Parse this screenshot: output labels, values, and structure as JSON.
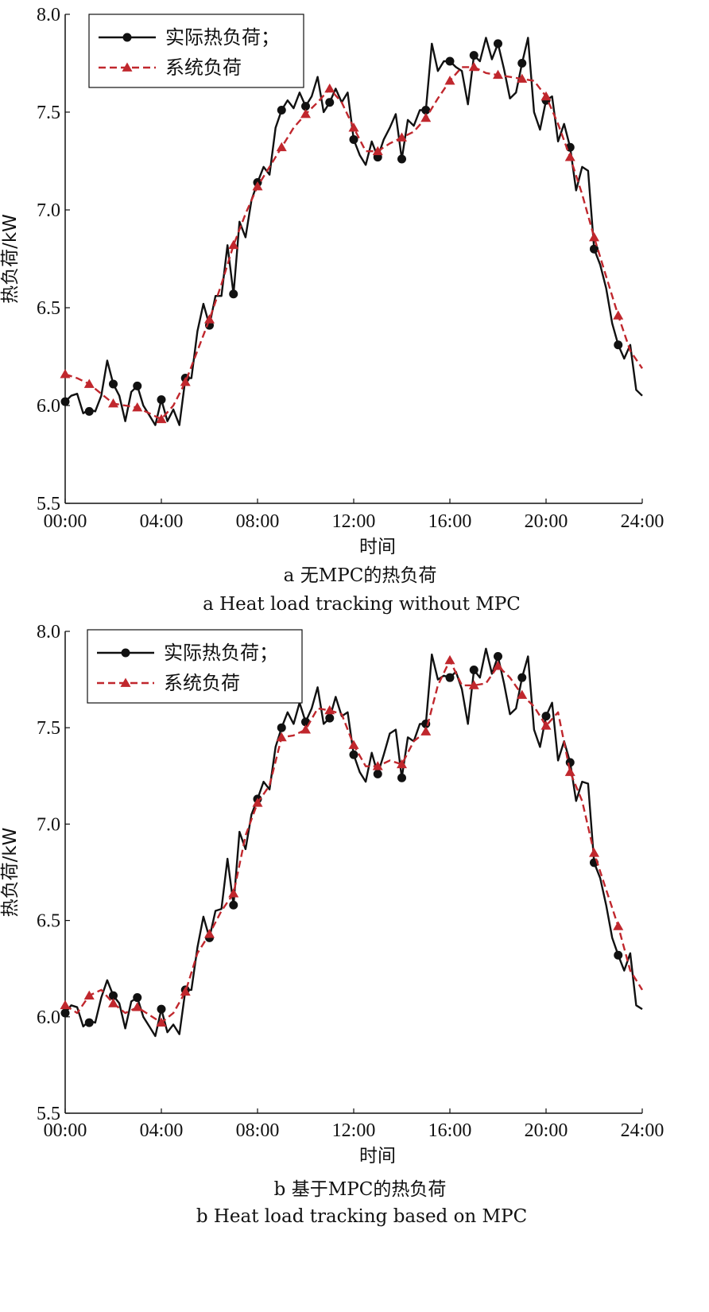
{
  "chart_data": [
    {
      "type": "line",
      "caption_cn": "a  无MPC的热负荷",
      "caption_en": "a  Heat load tracking without MPC",
      "xlabel": "时间",
      "ylabel": "热负荷/kW",
      "xlim": [
        0,
        24
      ],
      "ylim": [
        5.5,
        8.0
      ],
      "xticks": [
        "00:00",
        "04:00",
        "08:00",
        "12:00",
        "16:00",
        "20:00",
        "24:00"
      ],
      "yticks": [
        "5.5",
        "6.0",
        "6.5",
        "7.0",
        "7.5",
        "8.0"
      ],
      "legend_position": "top-left",
      "series": [
        {
          "name": "实际热负荷；",
          "color": "#111111",
          "style": "solid-circle",
          "x": [
            0.0,
            0.25,
            0.5,
            0.75,
            1.0,
            1.25,
            1.5,
            1.75,
            2.0,
            2.25,
            2.5,
            2.75,
            3.0,
            3.25,
            3.5,
            3.75,
            4.0,
            4.25,
            4.5,
            4.75,
            5.0,
            5.25,
            5.5,
            5.75,
            6.0,
            6.25,
            6.5,
            6.75,
            7.0,
            7.25,
            7.5,
            7.75,
            8.0,
            8.25,
            8.5,
            8.75,
            9.0,
            9.25,
            9.5,
            9.75,
            10.0,
            10.25,
            10.5,
            10.75,
            11.0,
            11.25,
            11.5,
            11.75,
            12.0,
            12.25,
            12.5,
            12.75,
            13.0,
            13.25,
            13.5,
            13.75,
            14.0,
            14.25,
            14.5,
            14.75,
            15.0,
            15.25,
            15.5,
            15.75,
            16.0,
            16.25,
            16.5,
            16.75,
            17.0,
            17.25,
            17.5,
            17.75,
            18.0,
            18.25,
            18.5,
            18.75,
            19.0,
            19.25,
            19.5,
            19.75,
            20.0,
            20.25,
            20.5,
            20.75,
            21.0,
            21.25,
            21.5,
            21.75,
            22.0,
            22.25,
            22.5,
            22.75,
            23.0,
            23.25,
            23.5,
            23.75,
            24.0
          ],
          "y": [
            6.02,
            6.05,
            6.06,
            5.96,
            5.98,
            5.97,
            6.05,
            6.23,
            6.11,
            6.05,
            5.92,
            6.07,
            6.1,
            6.0,
            5.95,
            5.9,
            6.03,
            5.92,
            5.98,
            5.9,
            6.14,
            6.14,
            6.38,
            6.52,
            6.41,
            6.56,
            6.56,
            6.82,
            6.57,
            6.94,
            6.86,
            7.05,
            7.14,
            7.22,
            7.18,
            7.42,
            7.51,
            7.56,
            7.52,
            7.6,
            7.53,
            7.58,
            7.68,
            7.5,
            7.55,
            7.62,
            7.55,
            7.6,
            7.36,
            7.28,
            7.23,
            7.35,
            7.27,
            7.36,
            7.42,
            7.49,
            7.26,
            7.46,
            7.43,
            7.51,
            7.51,
            7.85,
            7.71,
            7.76,
            7.76,
            7.73,
            7.71,
            7.54,
            7.79,
            7.76,
            7.88,
            7.77,
            7.85,
            7.72,
            7.57,
            7.6,
            7.75,
            7.88,
            7.5,
            7.41,
            7.56,
            7.58,
            7.35,
            7.44,
            7.32,
            7.1,
            7.22,
            7.2,
            6.8,
            6.72,
            6.6,
            6.42,
            6.31,
            6.24,
            6.31,
            6.08,
            6.05
          ],
          "markers_x": [
            0.0,
            1.0,
            2.0,
            3.0,
            4.0,
            5.0,
            6.0,
            7.0,
            8.0,
            9.0,
            10.0,
            11.0,
            12.0,
            13.0,
            14.0,
            15.0,
            16.0,
            17.0,
            18.0,
            19.0,
            20.0,
            21.0,
            22.0,
            23.0
          ],
          "markers_y": [
            6.02,
            5.97,
            6.11,
            6.1,
            6.03,
            6.14,
            6.41,
            6.57,
            7.14,
            7.51,
            7.53,
            7.55,
            7.36,
            7.27,
            7.26,
            7.51,
            7.76,
            7.79,
            7.85,
            7.75,
            7.56,
            7.32,
            6.8,
            6.31
          ]
        },
        {
          "name": "系统负荷",
          "color": "#c0272d",
          "style": "dashed-triangle",
          "x": [
            0.0,
            0.5,
            1.0,
            1.5,
            2.0,
            2.5,
            3.0,
            3.5,
            4.0,
            4.5,
            5.0,
            5.5,
            6.0,
            6.5,
            7.0,
            7.5,
            8.0,
            8.5,
            9.0,
            9.5,
            10.0,
            10.5,
            11.0,
            11.5,
            12.0,
            12.5,
            13.0,
            13.5,
            14.0,
            14.5,
            15.0,
            15.5,
            16.0,
            16.5,
            17.0,
            17.5,
            18.0,
            18.5,
            19.0,
            19.5,
            20.0,
            20.5,
            21.0,
            21.5,
            22.0,
            22.5,
            23.0,
            23.5,
            24.0
          ],
          "y": [
            6.16,
            6.14,
            6.11,
            6.06,
            6.01,
            6.0,
            5.99,
            5.96,
            5.93,
            6.0,
            6.12,
            6.28,
            6.44,
            6.62,
            6.82,
            6.98,
            7.12,
            7.22,
            7.32,
            7.42,
            7.49,
            7.55,
            7.62,
            7.55,
            7.42,
            7.3,
            7.3,
            7.34,
            7.37,
            7.4,
            7.47,
            7.57,
            7.66,
            7.73,
            7.73,
            7.7,
            7.69,
            7.68,
            7.67,
            7.66,
            7.58,
            7.44,
            7.27,
            7.08,
            6.86,
            6.66,
            6.46,
            6.28,
            6.19
          ],
          "markers_x": [
            0.0,
            1.0,
            2.0,
            3.0,
            4.0,
            5.0,
            6.0,
            7.0,
            8.0,
            9.0,
            10.0,
            11.0,
            12.0,
            13.0,
            14.0,
            15.0,
            16.0,
            17.0,
            18.0,
            19.0,
            20.0,
            21.0,
            22.0,
            23.0
          ],
          "markers_y": [
            6.16,
            6.11,
            6.01,
            5.99,
            5.93,
            6.12,
            6.44,
            6.82,
            7.12,
            7.32,
            7.49,
            7.62,
            7.42,
            7.3,
            7.37,
            7.47,
            7.66,
            7.73,
            7.69,
            7.67,
            7.58,
            7.27,
            6.86,
            6.46
          ]
        }
      ]
    },
    {
      "type": "line",
      "caption_cn": "b 基于MPC的热负荷",
      "caption_en": "b  Heat load tracking based on MPC",
      "xlabel": "时间",
      "ylabel": "热负荷/kW",
      "xlim": [
        0,
        24
      ],
      "ylim": [
        5.5,
        8.0
      ],
      "xticks": [
        "00:00",
        "04:00",
        "08:00",
        "12:00",
        "16:00",
        "20:00",
        "24:00"
      ],
      "yticks": [
        "5.5",
        "6.0",
        "6.5",
        "7.0",
        "7.5",
        "8.0"
      ],
      "legend_position": "top-left",
      "series": [
        {
          "name": "实际热负荷；",
          "color": "#111111",
          "style": "solid-circle",
          "x": [
            0.0,
            0.25,
            0.5,
            0.75,
            1.0,
            1.25,
            1.5,
            1.75,
            2.0,
            2.25,
            2.5,
            2.75,
            3.0,
            3.25,
            3.5,
            3.75,
            4.0,
            4.25,
            4.5,
            4.75,
            5.0,
            5.25,
            5.5,
            5.75,
            6.0,
            6.25,
            6.5,
            6.75,
            7.0,
            7.25,
            7.5,
            7.75,
            8.0,
            8.25,
            8.5,
            8.75,
            9.0,
            9.25,
            9.5,
            9.75,
            10.0,
            10.25,
            10.5,
            10.75,
            11.0,
            11.25,
            11.5,
            11.75,
            12.0,
            12.25,
            12.5,
            12.75,
            13.0,
            13.25,
            13.5,
            13.75,
            14.0,
            14.25,
            14.5,
            14.75,
            15.0,
            15.25,
            15.5,
            15.75,
            16.0,
            16.25,
            16.5,
            16.75,
            17.0,
            17.25,
            17.5,
            17.75,
            18.0,
            18.25,
            18.5,
            18.75,
            19.0,
            19.25,
            19.5,
            19.75,
            20.0,
            20.25,
            20.5,
            20.75,
            21.0,
            21.25,
            21.5,
            21.75,
            22.0,
            22.25,
            22.5,
            22.75,
            23.0,
            23.25,
            23.5,
            23.75,
            24.0
          ],
          "y": [
            6.02,
            6.06,
            6.05,
            5.95,
            5.98,
            5.97,
            6.1,
            6.19,
            6.11,
            6.07,
            5.94,
            6.08,
            6.1,
            6.0,
            5.95,
            5.9,
            6.04,
            5.92,
            5.96,
            5.91,
            6.14,
            6.14,
            6.36,
            6.52,
            6.41,
            6.55,
            6.56,
            6.82,
            6.58,
            6.96,
            6.87,
            7.05,
            7.13,
            7.22,
            7.18,
            7.4,
            7.5,
            7.58,
            7.52,
            7.63,
            7.53,
            7.6,
            7.71,
            7.52,
            7.55,
            7.66,
            7.56,
            7.58,
            7.36,
            7.27,
            7.22,
            7.37,
            7.26,
            7.36,
            7.47,
            7.49,
            7.24,
            7.45,
            7.43,
            7.52,
            7.52,
            7.88,
            7.75,
            7.77,
            7.76,
            7.79,
            7.7,
            7.52,
            7.8,
            7.76,
            7.91,
            7.78,
            7.87,
            7.73,
            7.57,
            7.6,
            7.76,
            7.87,
            7.49,
            7.4,
            7.56,
            7.63,
            7.33,
            7.43,
            7.32,
            7.12,
            7.22,
            7.21,
            6.8,
            6.72,
            6.58,
            6.41,
            6.32,
            6.24,
            6.33,
            6.06,
            6.04
          ],
          "markers_x": [
            0.0,
            1.0,
            2.0,
            3.0,
            4.0,
            5.0,
            6.0,
            7.0,
            8.0,
            9.0,
            10.0,
            11.0,
            12.0,
            13.0,
            14.0,
            15.0,
            16.0,
            17.0,
            18.0,
            19.0,
            20.0,
            21.0,
            22.0,
            23.0
          ],
          "markers_y": [
            6.02,
            5.97,
            6.11,
            6.1,
            6.04,
            6.14,
            6.41,
            6.58,
            7.13,
            7.5,
            7.53,
            7.55,
            7.36,
            7.26,
            7.24,
            7.52,
            7.76,
            7.8,
            7.87,
            7.76,
            7.56,
            7.32,
            6.8,
            6.32
          ]
        },
        {
          "name": "系统负荷",
          "color": "#c0272d",
          "style": "dashed-triangle",
          "x": [
            0.0,
            0.5,
            1.0,
            1.5,
            2.0,
            2.5,
            3.0,
            3.5,
            4.0,
            4.5,
            5.0,
            5.5,
            6.0,
            6.5,
            7.0,
            7.5,
            8.0,
            8.5,
            9.0,
            9.5,
            10.0,
            10.5,
            11.0,
            11.5,
            12.0,
            12.5,
            13.0,
            13.5,
            14.0,
            14.5,
            15.0,
            15.5,
            16.0,
            16.5,
            17.0,
            17.5,
            18.0,
            18.5,
            19.0,
            19.5,
            20.0,
            20.5,
            21.0,
            21.5,
            22.0,
            22.5,
            23.0,
            23.5,
            24.0
          ],
          "y": [
            6.06,
            6.02,
            6.11,
            6.14,
            6.07,
            6.02,
            6.05,
            6.01,
            5.97,
            6.02,
            6.13,
            6.33,
            6.43,
            6.55,
            6.64,
            6.94,
            7.11,
            7.2,
            7.45,
            7.46,
            7.49,
            7.6,
            7.59,
            7.57,
            7.41,
            7.3,
            7.3,
            7.33,
            7.31,
            7.43,
            7.48,
            7.72,
            7.85,
            7.72,
            7.72,
            7.73,
            7.82,
            7.76,
            7.67,
            7.61,
            7.51,
            7.58,
            7.27,
            7.12,
            6.85,
            6.66,
            6.47,
            6.24,
            6.14
          ],
          "markers_x": [
            0.0,
            1.0,
            2.0,
            3.0,
            4.0,
            5.0,
            6.0,
            7.0,
            8.0,
            9.0,
            10.0,
            11.0,
            12.0,
            13.0,
            14.0,
            15.0,
            16.0,
            17.0,
            18.0,
            19.0,
            20.0,
            21.0,
            22.0,
            23.0
          ],
          "markers_y": [
            6.06,
            6.11,
            6.07,
            6.05,
            5.97,
            6.13,
            6.43,
            6.64,
            7.11,
            7.45,
            7.49,
            7.59,
            7.41,
            7.3,
            7.31,
            7.48,
            7.85,
            7.72,
            7.82,
            7.67,
            7.51,
            7.27,
            6.85,
            6.47
          ]
        }
      ]
    }
  ]
}
